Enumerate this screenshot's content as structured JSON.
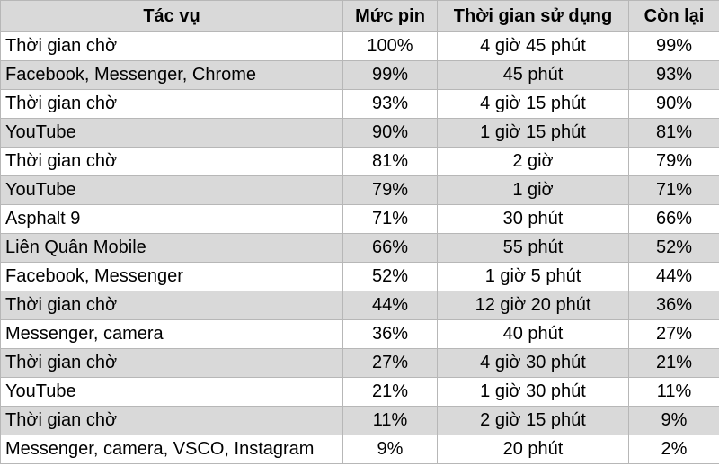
{
  "table": {
    "headers": [
      "Tác vụ",
      "Mức pin",
      "Thời gian sử dụng",
      "Còn lại"
    ],
    "rows": [
      [
        "Thời gian chờ",
        "100%",
        "4 giờ 45 phút",
        "99%"
      ],
      [
        "Facebook, Messenger, Chrome",
        "99%",
        "45 phút",
        "93%"
      ],
      [
        "Thời gian chờ",
        "93%",
        "4 giờ 15 phút",
        "90%"
      ],
      [
        "YouTube",
        "90%",
        "1 giờ 15 phút",
        "81%"
      ],
      [
        "Thời gian chờ",
        "81%",
        "2 giờ",
        "79%"
      ],
      [
        "YouTube",
        "79%",
        "1 giờ",
        "71%"
      ],
      [
        "Asphalt 9",
        "71%",
        "30 phút",
        "66%"
      ],
      [
        "Liên Quân Mobile",
        "66%",
        "55 phút",
        "52%"
      ],
      [
        "Facebook, Messenger",
        "52%",
        "1 giờ 5 phút",
        "44%"
      ],
      [
        "Thời gian chờ",
        "44%",
        "12 giờ 20 phút",
        "36%"
      ],
      [
        "Messenger, camera",
        "36%",
        "40 phút",
        "27%"
      ],
      [
        "Thời gian chờ",
        "27%",
        "4 giờ 30 phút",
        "21%"
      ],
      [
        "YouTube",
        "21%",
        "1 giờ 30 phút",
        "11%"
      ],
      [
        "Thời gian chờ",
        "11%",
        "2 giờ 15 phút",
        "9%"
      ],
      [
        "Messenger, camera, VSCO, Instagram",
        "9%",
        "20 phút",
        "2%"
      ]
    ]
  },
  "colors": {
    "header_bg": "#d9d9d9",
    "alt_row_bg": "#d9d9d9",
    "row_bg": "#ffffff",
    "border": "#b7b7b7"
  }
}
